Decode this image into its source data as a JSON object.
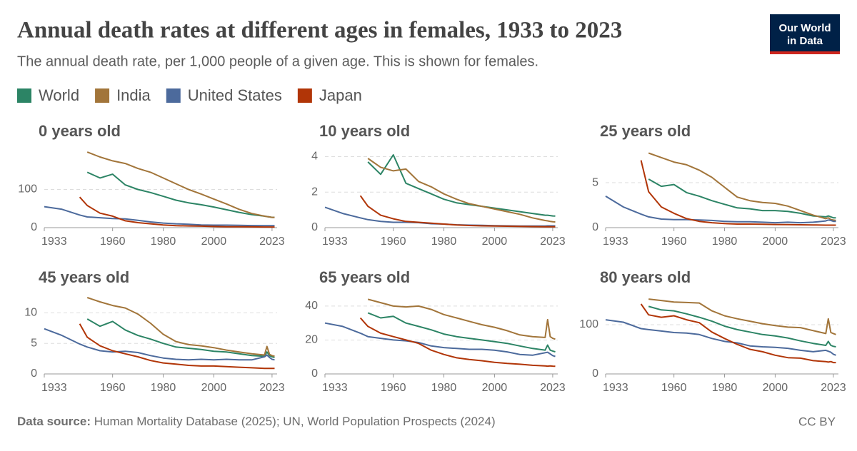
{
  "header": {
    "title": "Annual death rates at different ages in females, 1933 to 2023",
    "subtitle": "The annual death rate, per 1,000 people of a given age. This is shown for females."
  },
  "logo": [
    "Our World",
    "in Data"
  ],
  "footer": {
    "source_label": "Data source:",
    "source": "Human Mortality Database (2025); UN, World Population Prospects (2024)",
    "license": "CC BY"
  },
  "chart_data": [
    {
      "type": "line",
      "title": "0 years old",
      "x": [
        1933,
        1940,
        1947,
        1950,
        1955,
        1960,
        1965,
        1970,
        1975,
        1980,
        1985,
        1990,
        1995,
        2000,
        2005,
        2010,
        2015,
        2020,
        2021,
        2022,
        2023,
        2024
      ],
      "xlim": [
        1933,
        2025
      ],
      "xticks": [
        1933,
        1960,
        1980,
        2000,
        2023
      ],
      "ylim": [
        0,
        200
      ],
      "yticks": [
        0,
        100
      ],
      "grid": true,
      "series": [
        {
          "name": "World",
          "color": "#2c8465",
          "values": [
            null,
            null,
            null,
            145,
            130,
            140,
            112,
            100,
            92,
            82,
            72,
            65,
            60,
            54,
            47,
            40,
            34,
            30,
            29,
            28,
            27,
            27
          ]
        },
        {
          "name": "India",
          "color": "#a2753a",
          "values": [
            null,
            null,
            null,
            198,
            185,
            175,
            168,
            155,
            145,
            130,
            115,
            100,
            88,
            75,
            62,
            48,
            37,
            30,
            29,
            28,
            27,
            27
          ]
        },
        {
          "name": "United States",
          "color": "#4c6a9c",
          "values": [
            55,
            48,
            33,
            28,
            26,
            24,
            23,
            19,
            15,
            12,
            10,
            9,
            7,
            6.5,
            6.5,
            6,
            5.5,
            5.2,
            5.2,
            5.3,
            5.2,
            5
          ]
        },
        {
          "name": "Japan",
          "color": "#b13507",
          "values": [
            null,
            null,
            80,
            58,
            38,
            30,
            18,
            13,
            10,
            7,
            5,
            4.5,
            4,
            3,
            2.5,
            2.2,
            2,
            1.7,
            1.7,
            1.7,
            1.7,
            1.7
          ]
        }
      ]
    },
    {
      "type": "line",
      "title": "10 years old",
      "x": [
        1933,
        1940,
        1947,
        1950,
        1955,
        1960,
        1965,
        1970,
        1975,
        1980,
        1985,
        1990,
        1995,
        2000,
        2005,
        2010,
        2015,
        2020,
        2021,
        2022,
        2023,
        2024
      ],
      "xlim": [
        1933,
        2025
      ],
      "xticks": [
        1933,
        1960,
        1980,
        2000,
        2023
      ],
      "ylim": [
        0,
        4.3
      ],
      "yticks": [
        0,
        2,
        4
      ],
      "grid": true,
      "series": [
        {
          "name": "World",
          "color": "#2c8465",
          "values": [
            null,
            null,
            null,
            3.7,
            3.0,
            4.1,
            2.5,
            2.2,
            1.9,
            1.6,
            1.4,
            1.3,
            1.2,
            1.1,
            1.0,
            0.9,
            0.8,
            0.7,
            0.7,
            0.68,
            0.66,
            0.65
          ]
        },
        {
          "name": "India",
          "color": "#a2753a",
          "values": [
            null,
            null,
            null,
            3.9,
            3.4,
            3.2,
            3.3,
            2.6,
            2.3,
            1.9,
            1.6,
            1.35,
            1.2,
            1.05,
            0.9,
            0.75,
            0.55,
            0.4,
            0.38,
            0.35,
            0.33,
            0.32
          ]
        },
        {
          "name": "United States",
          "color": "#4c6a9c",
          "values": [
            1.15,
            0.8,
            0.55,
            0.45,
            0.35,
            0.3,
            0.3,
            0.28,
            0.22,
            0.2,
            0.16,
            0.14,
            0.13,
            0.11,
            0.1,
            0.09,
            0.09,
            0.09,
            0.1,
            0.1,
            0.1,
            0.1
          ]
        },
        {
          "name": "Japan",
          "color": "#b13507",
          "values": [
            null,
            null,
            1.8,
            1.2,
            0.7,
            0.5,
            0.35,
            0.3,
            0.25,
            0.2,
            0.15,
            0.12,
            0.1,
            0.09,
            0.08,
            0.07,
            0.06,
            0.05,
            0.05,
            0.05,
            0.05,
            0.05
          ]
        }
      ]
    },
    {
      "type": "line",
      "title": "25 years old",
      "x": [
        1933,
        1940,
        1947,
        1950,
        1955,
        1960,
        1965,
        1970,
        1975,
        1980,
        1985,
        1990,
        1995,
        2000,
        2005,
        2010,
        2015,
        2020,
        2021,
        2022,
        2023,
        2024
      ],
      "xlim": [
        1933,
        2025
      ],
      "xticks": [
        1933,
        1960,
        1980,
        2000,
        2023
      ],
      "ylim": [
        0,
        8.5
      ],
      "yticks": [
        0,
        5
      ],
      "grid": true,
      "series": [
        {
          "name": "World",
          "color": "#2c8465",
          "values": [
            null,
            null,
            null,
            5.4,
            4.6,
            4.8,
            3.9,
            3.5,
            3.0,
            2.6,
            2.2,
            2.1,
            1.9,
            1.9,
            1.8,
            1.6,
            1.3,
            1.2,
            1.3,
            1.2,
            1.1,
            1.1
          ]
        },
        {
          "name": "India",
          "color": "#a2753a",
          "values": [
            null,
            null,
            null,
            8.3,
            7.8,
            7.3,
            7.0,
            6.4,
            5.6,
            4.5,
            3.4,
            3.0,
            2.8,
            2.7,
            2.4,
            1.9,
            1.4,
            1.0,
            1.1,
            0.9,
            0.85,
            0.8
          ]
        },
        {
          "name": "United States",
          "color": "#4c6a9c",
          "values": [
            3.5,
            2.3,
            1.5,
            1.2,
            0.95,
            0.9,
            0.9,
            0.85,
            0.8,
            0.7,
            0.65,
            0.65,
            0.6,
            0.55,
            0.6,
            0.55,
            0.6,
            0.75,
            0.85,
            0.8,
            0.7,
            0.7
          ]
        },
        {
          "name": "Japan",
          "color": "#b13507",
          "values": [
            null,
            null,
            7.5,
            4.0,
            2.3,
            1.6,
            1.0,
            0.7,
            0.55,
            0.45,
            0.4,
            0.4,
            0.38,
            0.35,
            0.33,
            0.32,
            0.3,
            0.28,
            0.28,
            0.28,
            0.28,
            0.28
          ]
        }
      ]
    },
    {
      "type": "line",
      "title": "45 years old",
      "x": [
        1933,
        1940,
        1947,
        1950,
        1955,
        1960,
        1965,
        1970,
        1975,
        1980,
        1985,
        1990,
        1995,
        2000,
        2005,
        2010,
        2015,
        2020,
        2021,
        2022,
        2023,
        2024
      ],
      "xlim": [
        1933,
        2025
      ],
      "xticks": [
        1933,
        1960,
        1980,
        2000,
        2023
      ],
      "ylim": [
        0,
        12.5
      ],
      "yticks": [
        0,
        5,
        10
      ],
      "grid": true,
      "series": [
        {
          "name": "World",
          "color": "#2c8465",
          "values": [
            null,
            null,
            null,
            9.0,
            7.8,
            8.6,
            7.2,
            6.3,
            5.7,
            5.0,
            4.4,
            4.2,
            4.0,
            3.7,
            3.6,
            3.3,
            3.0,
            2.9,
            3.6,
            3.0,
            2.8,
            2.7
          ]
        },
        {
          "name": "India",
          "color": "#a2753a",
          "values": [
            null,
            null,
            null,
            12.5,
            11.8,
            11.2,
            10.8,
            9.8,
            8.3,
            6.5,
            5.3,
            4.8,
            4.6,
            4.3,
            3.9,
            3.6,
            3.3,
            3.1,
            4.5,
            3.2,
            3.0,
            2.9
          ]
        },
        {
          "name": "United States",
          "color": "#4c6a9c",
          "values": [
            7.4,
            6.3,
            4.9,
            4.4,
            3.8,
            3.6,
            3.7,
            3.5,
            3.0,
            2.6,
            2.4,
            2.3,
            2.4,
            2.3,
            2.4,
            2.3,
            2.3,
            2.8,
            3.1,
            2.7,
            2.4,
            2.3
          ]
        },
        {
          "name": "Japan",
          "color": "#b13507",
          "values": [
            null,
            null,
            8.2,
            6.0,
            4.6,
            3.8,
            3.3,
            2.8,
            2.2,
            1.8,
            1.6,
            1.4,
            1.3,
            1.3,
            1.2,
            1.1,
            1.0,
            0.9,
            0.9,
            0.9,
            0.9,
            0.9
          ]
        }
      ]
    },
    {
      "type": "line",
      "title": "65 years old",
      "x": [
        1933,
        1940,
        1947,
        1950,
        1955,
        1960,
        1965,
        1970,
        1975,
        1980,
        1985,
        1990,
        1995,
        2000,
        2005,
        2010,
        2015,
        2020,
        2021,
        2022,
        2023,
        2024
      ],
      "xlim": [
        1933,
        2025
      ],
      "xticks": [
        1933,
        1960,
        1980,
        2000,
        2023
      ],
      "ylim": [
        0,
        45
      ],
      "yticks": [
        0,
        20,
        40
      ],
      "grid": true,
      "series": [
        {
          "name": "World",
          "color": "#2c8465",
          "values": [
            null,
            null,
            null,
            36,
            33,
            34,
            30,
            28,
            26,
            23.5,
            22,
            21,
            20,
            19,
            18,
            16.5,
            15,
            14,
            17,
            14,
            13.5,
            13
          ]
        },
        {
          "name": "India",
          "color": "#a2753a",
          "values": [
            null,
            null,
            null,
            44,
            42,
            40,
            39.5,
            40,
            38,
            35,
            33,
            31,
            29,
            27.5,
            25.5,
            23,
            22,
            21.5,
            32,
            22,
            21,
            20.5
          ]
        },
        {
          "name": "United States",
          "color": "#4c6a9c",
          "values": [
            30,
            28,
            24,
            22,
            21,
            20,
            19.5,
            18.5,
            16.5,
            15.5,
            15,
            14.5,
            14.5,
            14,
            13,
            11.5,
            11,
            12.5,
            12.8,
            11.8,
            10.8,
            10.3
          ]
        },
        {
          "name": "Japan",
          "color": "#b13507",
          "values": [
            null,
            null,
            33,
            28,
            24,
            22,
            20,
            18,
            14,
            11.5,
            9.5,
            8.5,
            7.8,
            6.8,
            6.2,
            5.7,
            5.1,
            4.7,
            4.6,
            4.7,
            4.6,
            4.5
          ]
        }
      ]
    },
    {
      "type": "line",
      "title": "80 years old",
      "x": [
        1933,
        1940,
        1947,
        1950,
        1955,
        1960,
        1965,
        1970,
        1975,
        1980,
        1985,
        1990,
        1995,
        2000,
        2005,
        2010,
        2015,
        2020,
        2021,
        2022,
        2023,
        2024
      ],
      "xlim": [
        1933,
        2025
      ],
      "xticks": [
        1933,
        1960,
        1980,
        2000,
        2023
      ],
      "ylim": [
        0,
        155
      ],
      "yticks": [
        0,
        100
      ],
      "grid": true,
      "series": [
        {
          "name": "World",
          "color": "#2c8465",
          "values": [
            null,
            null,
            null,
            137,
            130,
            128,
            122,
            115,
            107,
            97,
            90,
            85,
            80,
            77,
            73,
            67,
            62,
            58,
            66,
            58,
            56,
            55
          ]
        },
        {
          "name": "India",
          "color": "#a2753a",
          "values": [
            null,
            null,
            null,
            152,
            149,
            146,
            145,
            144,
            128,
            118,
            112,
            107,
            102,
            98,
            95,
            94,
            88,
            82,
            112,
            84,
            82,
            80
          ]
        },
        {
          "name": "United States",
          "color": "#4c6a9c",
          "values": [
            110,
            105,
            92,
            90,
            87,
            84,
            83,
            80,
            72,
            66,
            63,
            57,
            55,
            54,
            52,
            48,
            45,
            48,
            46,
            44,
            40,
            38
          ]
        },
        {
          "name": "Japan",
          "color": "#b13507",
          "values": [
            null,
            null,
            142,
            120,
            115,
            118,
            110,
            104,
            85,
            72,
            60,
            50,
            45,
            38,
            33,
            32,
            27,
            25,
            24,
            25,
            23,
            23
          ]
        }
      ]
    }
  ]
}
